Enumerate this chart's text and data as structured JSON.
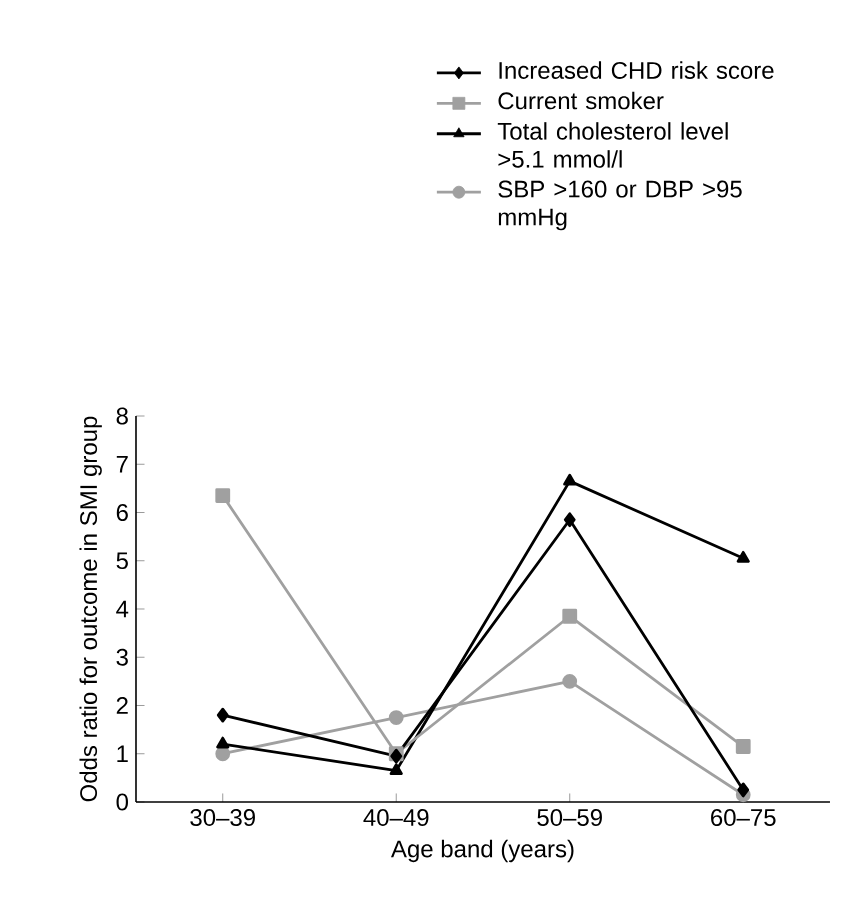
{
  "chart_data": {
    "type": "line",
    "xlabel": "Age band (years)",
    "ylabel": "Odds ratio for outcome in SMI group",
    "categories": [
      "30–39",
      "40–49",
      "50–59",
      "60–75"
    ],
    "series": [
      {
        "name": "Increased CHD risk score",
        "color": "#000000",
        "marker": "diamond",
        "values": [
          1.8,
          0.95,
          5.85,
          0.25
        ]
      },
      {
        "name": "Current smoker",
        "color": "#a0a0a0",
        "marker": "square",
        "values": [
          6.35,
          1.0,
          3.85,
          1.15
        ]
      },
      {
        "name": "Total cholesterol level >5.1 mmol/l",
        "color": "#000000",
        "marker": "triangle",
        "values": [
          1.2,
          0.65,
          6.65,
          5.05
        ]
      },
      {
        "name": "SBP >160 or DBP >95 mmHg",
        "color": "#a0a0a0",
        "marker": "circle",
        "values": [
          1.0,
          1.75,
          2.5,
          0.15
        ]
      }
    ],
    "ylim": [
      0,
      8
    ],
    "yticks": [
      0,
      1,
      2,
      3,
      4,
      5,
      6,
      7,
      8
    ],
    "legend": "top",
    "line_style": "solid"
  }
}
